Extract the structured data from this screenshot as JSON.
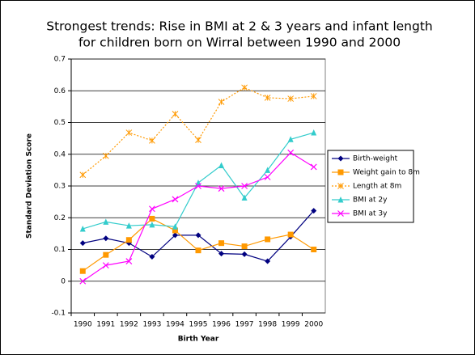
{
  "chart_data": {
    "type": "line",
    "title": [
      "Strongest trends: Rise in BMI at 2 & 3 years and infant length",
      "for children born on Wirral between 1990 and 2000"
    ],
    "y_label": "Standard Deviation Score",
    "x_label": "Birth Year",
    "categories": [
      "1990",
      "1991",
      "1992",
      "1993",
      "1994",
      "1995",
      "1996",
      "1997",
      "1998",
      "1999",
      "2000"
    ],
    "ylim": [
      -0.1,
      0.7
    ],
    "yticks": [
      -0.1,
      0,
      0.1,
      0.2,
      0.3,
      0.4,
      0.5,
      0.6,
      0.7
    ],
    "grid": true,
    "legend": "right",
    "series": [
      {
        "name": "Birth-weight",
        "color": "#000080",
        "marker": "diamond",
        "dash": "solid",
        "values": [
          0.12,
          0.135,
          0.12,
          0.077,
          0.145,
          0.145,
          0.087,
          0.085,
          0.063,
          0.14,
          0.222
        ]
      },
      {
        "name": "Weight gain to 8m",
        "color": "#ff9900",
        "marker": "square",
        "dash": "solid",
        "values": [
          0.032,
          0.083,
          0.13,
          0.197,
          0.16,
          0.097,
          0.12,
          0.11,
          0.132,
          0.147,
          0.1
        ]
      },
      {
        "name": "Length at 8m",
        "color": "#ff9900",
        "marker": "asterisk",
        "dash": "dotted",
        "values": [
          0.335,
          0.395,
          0.468,
          0.443,
          0.527,
          0.445,
          0.565,
          0.61,
          0.578,
          0.575,
          0.583
        ]
      },
      {
        "name": "BMI at 2y",
        "color": "#33cccc",
        "marker": "triangle",
        "dash": "solid",
        "values": [
          0.165,
          0.187,
          0.175,
          0.178,
          0.172,
          0.31,
          0.365,
          0.263,
          0.35,
          0.447,
          0.468
        ]
      },
      {
        "name": "BMI at 3y",
        "color": "#ff00ff",
        "marker": "x",
        "dash": "solid",
        "values": [
          0,
          0.05,
          0.063,
          0.228,
          0.258,
          0.3,
          0.292,
          0.3,
          0.328,
          0.405,
          0.36
        ]
      }
    ]
  }
}
